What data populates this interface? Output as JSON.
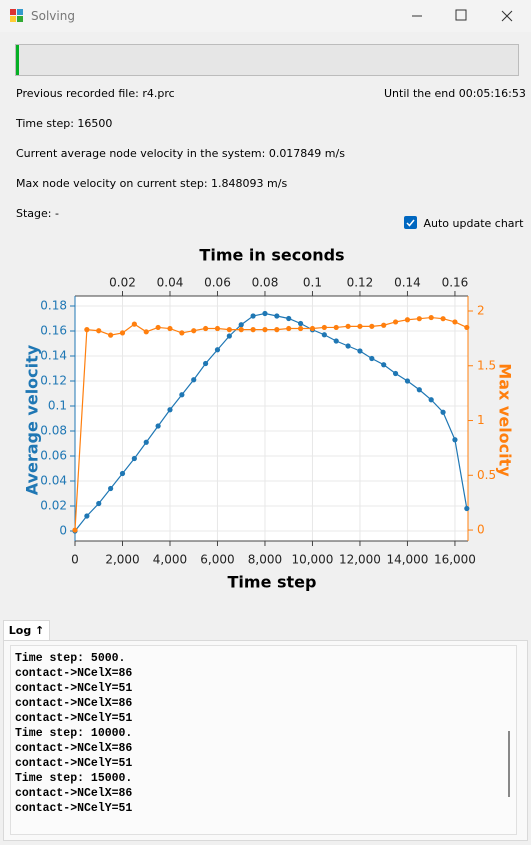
{
  "window": {
    "title": "Solving"
  },
  "info": {
    "previous_file": "Previous recorded file: r4.prc",
    "until_end": "Until the end 00:05:16:53",
    "time_step": "Time step: 16500",
    "avg_velocity": "Current average node velocity in the system: 0.017849 m/s",
    "max_velocity": "Max node velocity on current step: 1.848093 m/s",
    "stage": "Stage: -"
  },
  "auto_update": {
    "label": "Auto update chart",
    "checked": true
  },
  "chart_data": {
    "type": "line",
    "x2label": "Time in seconds",
    "xlabel": "Time step",
    "ylabel": "Average velocity",
    "y2label": "Max velocity",
    "x": [
      0,
      500,
      1000,
      1500,
      2000,
      2500,
      3000,
      3500,
      4000,
      4500,
      5000,
      5500,
      6000,
      6500,
      7000,
      7500,
      8000,
      8500,
      9000,
      9500,
      10000,
      10500,
      11000,
      11500,
      12000,
      12500,
      13000,
      13500,
      14000,
      14500,
      15000,
      15500,
      16000,
      16500
    ],
    "series": [
      {
        "name": "Average velocity",
        "color": "#1f77b4",
        "values": [
          0,
          0.012,
          0.022,
          0.034,
          0.046,
          0.058,
          0.071,
          0.084,
          0.097,
          0.109,
          0.121,
          0.134,
          0.145,
          0.156,
          0.165,
          0.172,
          0.174,
          0.172,
          0.17,
          0.166,
          0.161,
          0.157,
          0.152,
          0.148,
          0.144,
          0.138,
          0.133,
          0.126,
          0.12,
          0.113,
          0.105,
          0.095,
          0.073,
          0.018
        ]
      },
      {
        "name": "Max velocity",
        "color": "#ff7f0e",
        "axis": "y2",
        "values": [
          0,
          1.83,
          1.82,
          1.78,
          1.8,
          1.88,
          1.81,
          1.85,
          1.84,
          1.8,
          1.82,
          1.84,
          1.84,
          1.83,
          1.83,
          1.83,
          1.83,
          1.83,
          1.84,
          1.84,
          1.84,
          1.85,
          1.85,
          1.86,
          1.86,
          1.86,
          1.87,
          1.9,
          1.92,
          1.93,
          1.94,
          1.93,
          1.9,
          1.85
        ]
      }
    ],
    "xlim": [
      0,
      16550
    ],
    "xticks": [
      0,
      {
        "value": 2000,
        "label": "2,000"
      },
      {
        "value": 4000,
        "label": "4,000"
      },
      {
        "value": 6000,
        "label": "6,000"
      },
      {
        "value": 8000,
        "label": "8,000"
      },
      {
        "value": 10000,
        "label": "10,000"
      },
      {
        "value": 12000,
        "label": "12,000"
      },
      {
        "value": 14000,
        "label": "14,000"
      },
      {
        "value": 16000,
        "label": "16,000"
      }
    ],
    "x2lim": [
      0,
      0.1655
    ],
    "x2ticks": [
      0.02,
      0.04,
      0.06,
      0.08,
      0.1,
      0.12,
      0.14,
      0.16
    ],
    "ylim": [
      -0.008,
      0.188
    ],
    "yticks": [
      0,
      0.02,
      0.04,
      0.06,
      0.08,
      0.1,
      0.12,
      0.14,
      0.16,
      0.18
    ],
    "y2lim": [
      -0.1,
      2.137
    ],
    "y2ticks": [
      0,
      0.5,
      1,
      1.5,
      2
    ],
    "grid": true
  },
  "log": {
    "tab": "Log ↑",
    "lines": [
      "Time step: 5000.",
      "contact->NCelX=86",
      "contact->NCelY=51",
      "contact->NCelX=86",
      "contact->NCelY=51",
      "Time step: 10000.",
      "contact->NCelX=86",
      "contact->NCelY=51",
      "Time step: 15000.",
      "contact->NCelX=86",
      "contact->NCelY=51"
    ]
  }
}
